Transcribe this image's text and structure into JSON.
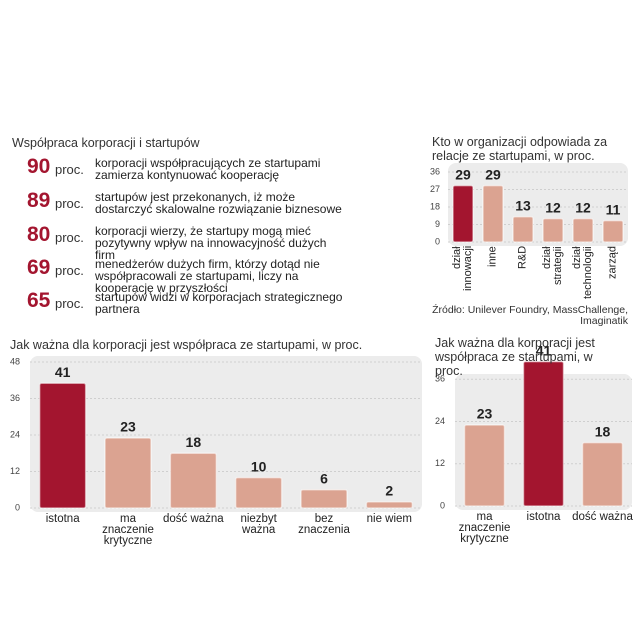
{
  "stats": {
    "title": "Współpraca korporacji i startupów",
    "items": [
      {
        "value": 90,
        "unit": "proc.",
        "text": "korporacji współpracujących ze startupami zamierza kontynuować kooperację"
      },
      {
        "value": 89,
        "unit": "proc.",
        "text": "startupów jest przekonanych, iż może dostarczyć skalowalne rozwiązanie biznesowe"
      },
      {
        "value": 80,
        "unit": "proc.",
        "text": "korporacji wierzy, że startupy mogą mieć pozytywny wpływ na innowacyjność dużych firm"
      },
      {
        "value": 69,
        "unit": "proc.",
        "text": "menedżerów dużych firm, którzy dotąd nie współpracowali ze startupami, liczy na kooperację w przyszłości"
      },
      {
        "value": 65,
        "unit": "proc.",
        "text": "startupów widzi w korporacjach strategicznego partnera"
      }
    ]
  },
  "chart_data": [
    {
      "type": "bar",
      "title": "Kto w organizacji odpowiada za relacje ze startupami, w proc.",
      "categories": [
        "dział innowacji",
        "inne",
        "R&D",
        "dział strategii",
        "dział technologii",
        "zarząd"
      ],
      "values": [
        29,
        29,
        13,
        12,
        12,
        11
      ],
      "colors": [
        "#a3152f",
        "#dba391",
        "#dba391",
        "#dba391",
        "#dba391",
        "#dba391"
      ],
      "ylim": [
        0,
        36
      ],
      "yticks": [
        0,
        9,
        18,
        27,
        36
      ],
      "grid": true,
      "source": "Źródło: Unilever Foundry, MassChallenge, Imaginatik"
    },
    {
      "type": "bar",
      "title": "Jak ważna dla korporacji jest współpraca ze startupami, w proc.",
      "categories": [
        "istotna",
        "ma znaczenie krytyczne",
        "dość ważna",
        "niezbyt ważna",
        "bez znaczenia",
        "nie wiem"
      ],
      "values": [
        41,
        23,
        18,
        10,
        6,
        2
      ],
      "colors": [
        "#a3152f",
        "#dba391",
        "#dba391",
        "#dba391",
        "#dba391",
        "#dba391"
      ],
      "ylim": [
        0,
        48
      ],
      "yticks": [
        0,
        12,
        24,
        36,
        48
      ],
      "grid": true
    },
    {
      "type": "bar",
      "title": "Jak ważna dla korporacji jest współpraca ze startupami, w proc.",
      "categories": [
        "ma znaczenie krytyczne",
        "istotna",
        "dość ważna"
      ],
      "values": [
        23,
        41,
        18
      ],
      "colors": [
        "#dba391",
        "#a3152f",
        "#dba391"
      ],
      "ylim": [
        0,
        48
      ],
      "yticks": [
        0,
        12,
        24,
        36
      ],
      "grid": true
    }
  ]
}
